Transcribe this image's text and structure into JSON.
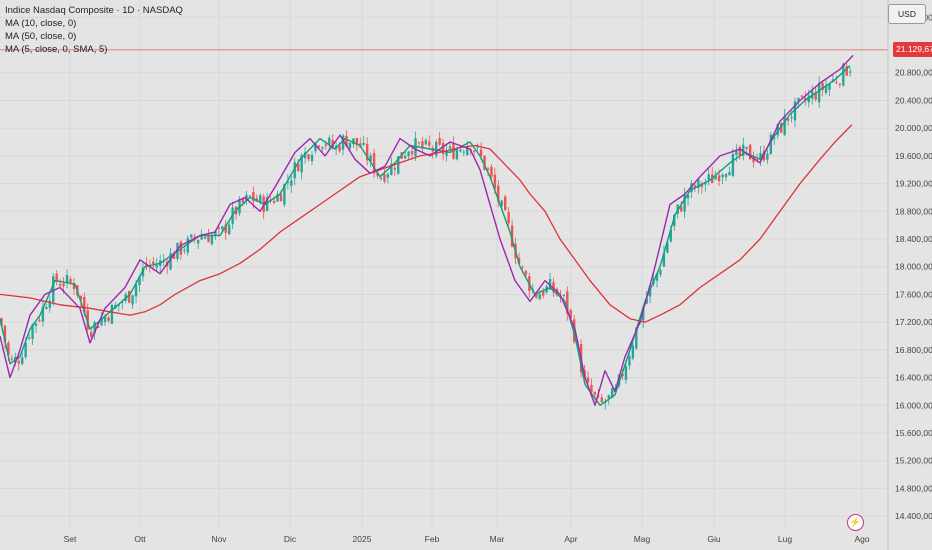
{
  "header": {
    "symbol_title": "Indice Nasdaq Composite · 1D · NASDAQ",
    "indicators": [
      "MA (10, close, 0)",
      "MA (50, close, 0)",
      "MA (5, close, 0, SMA, 5)"
    ]
  },
  "currency_label": "USD",
  "last_price_label": "21.129,67",
  "colors": {
    "background": "#e4e4e4",
    "up": "#26a69a",
    "down": "#ef5350",
    "ma10": "#0f9e7b",
    "ma50": "#e0323a",
    "ma5": "#9c27b0",
    "price_line": "#e23a3a"
  },
  "icons": {
    "bottom_right": "lightning-icon"
  },
  "chart_data": {
    "type": "candlestick",
    "x_ticks": [
      "Set",
      "Ott",
      "Nov",
      "Dic",
      "2025",
      "Feb",
      "Mar",
      "Apr",
      "Mag",
      "Giu",
      "Lug",
      "Ago"
    ],
    "y_ticks": [
      "21.600,00",
      "20.800,00",
      "20.400,00",
      "20.000,00",
      "19.600,00",
      "19.200,00",
      "18.800,00",
      "18.400,00",
      "18.000,00",
      "17.600,00",
      "17.200,00",
      "16.800,00",
      "16.400,00",
      "16.000,00",
      "15.600,00",
      "15.200,00",
      "14.800,00",
      "14.400,00"
    ],
    "ylim": [
      14200,
      21850
    ],
    "last_price": 21129.67,
    "series": [
      {
        "name": "MA (10, close, 0)",
        "x": [
          0,
          10,
          20,
          30,
          40,
          55,
          75,
          90,
          110,
          130,
          145,
          160,
          175,
          200,
          220,
          235,
          250,
          265,
          280,
          300,
          320,
          335,
          345,
          360,
          380,
          395,
          410,
          430,
          450,
          470,
          480,
          490,
          500,
          510,
          520,
          535,
          550,
          565,
          575,
          585,
          600,
          615,
          630,
          645,
          660,
          675,
          690,
          710,
          730,
          745,
          760,
          775,
          790,
          805,
          820,
          835,
          850
        ],
        "y": [
          17250,
          16600,
          16700,
          17100,
          17300,
          17800,
          17750,
          17100,
          17350,
          17600,
          18000,
          18050,
          18200,
          18450,
          18450,
          18800,
          19000,
          18900,
          19050,
          19550,
          19850,
          19700,
          19850,
          19750,
          19300,
          19500,
          19750,
          19700,
          19650,
          19800,
          19600,
          19300,
          18900,
          18500,
          18000,
          17600,
          17700,
          17500,
          17000,
          16300,
          16000,
          16150,
          16800,
          17500,
          18000,
          18750,
          19100,
          19250,
          19500,
          19650,
          19550,
          19900,
          20200,
          20400,
          20550,
          20700,
          20900
        ]
      },
      {
        "name": "MA (50, close, 0)",
        "x": [
          0,
          30,
          60,
          90,
          110,
          130,
          145,
          160,
          175,
          200,
          220,
          240,
          260,
          280,
          300,
          320,
          340,
          360,
          380,
          400,
          420,
          440,
          460,
          475,
          490,
          500,
          510,
          520,
          530,
          545,
          560,
          575,
          590,
          610,
          630,
          645,
          660,
          680,
          700,
          720,
          740,
          760,
          780,
          800,
          820,
          835,
          852
        ],
        "y": [
          17600,
          17550,
          17450,
          17400,
          17350,
          17300,
          17350,
          17450,
          17600,
          17800,
          17900,
          18050,
          18250,
          18500,
          18700,
          18900,
          19100,
          19300,
          19400,
          19500,
          19600,
          19650,
          19720,
          19750,
          19700,
          19550,
          19400,
          19250,
          19050,
          18800,
          18400,
          18100,
          17800,
          17450,
          17250,
          17200,
          17300,
          17450,
          17700,
          17900,
          18100,
          18400,
          18800,
          19200,
          19550,
          19800,
          20050
        ]
      },
      {
        "name": "MA (5, close, 0, SMA, 5)",
        "x": [
          0,
          10,
          20,
          30,
          45,
          60,
          80,
          90,
          105,
          125,
          140,
          160,
          180,
          200,
          215,
          230,
          245,
          260,
          275,
          295,
          310,
          325,
          340,
          355,
          370,
          385,
          400,
          415,
          430,
          450,
          470,
          480,
          490,
          500,
          515,
          530,
          545,
          560,
          575,
          585,
          595,
          605,
          615,
          625,
          640,
          655,
          670,
          685,
          700,
          720,
          740,
          760,
          780,
          800,
          820,
          840,
          853
        ],
        "y": [
          17000,
          16400,
          16800,
          17300,
          17600,
          17700,
          17400,
          16900,
          17400,
          17700,
          18100,
          17900,
          18300,
          18450,
          18500,
          18900,
          19000,
          18800,
          19150,
          19650,
          19850,
          19600,
          19900,
          19550,
          19350,
          19450,
          19850,
          19700,
          19600,
          19800,
          19700,
          19400,
          18900,
          18400,
          17800,
          17500,
          17800,
          17600,
          17100,
          16400,
          16000,
          16500,
          16200,
          16700,
          17200,
          18000,
          18900,
          19050,
          19300,
          19600,
          19700,
          19500,
          20100,
          20400,
          20650,
          20850,
          21050
        ]
      }
    ]
  }
}
